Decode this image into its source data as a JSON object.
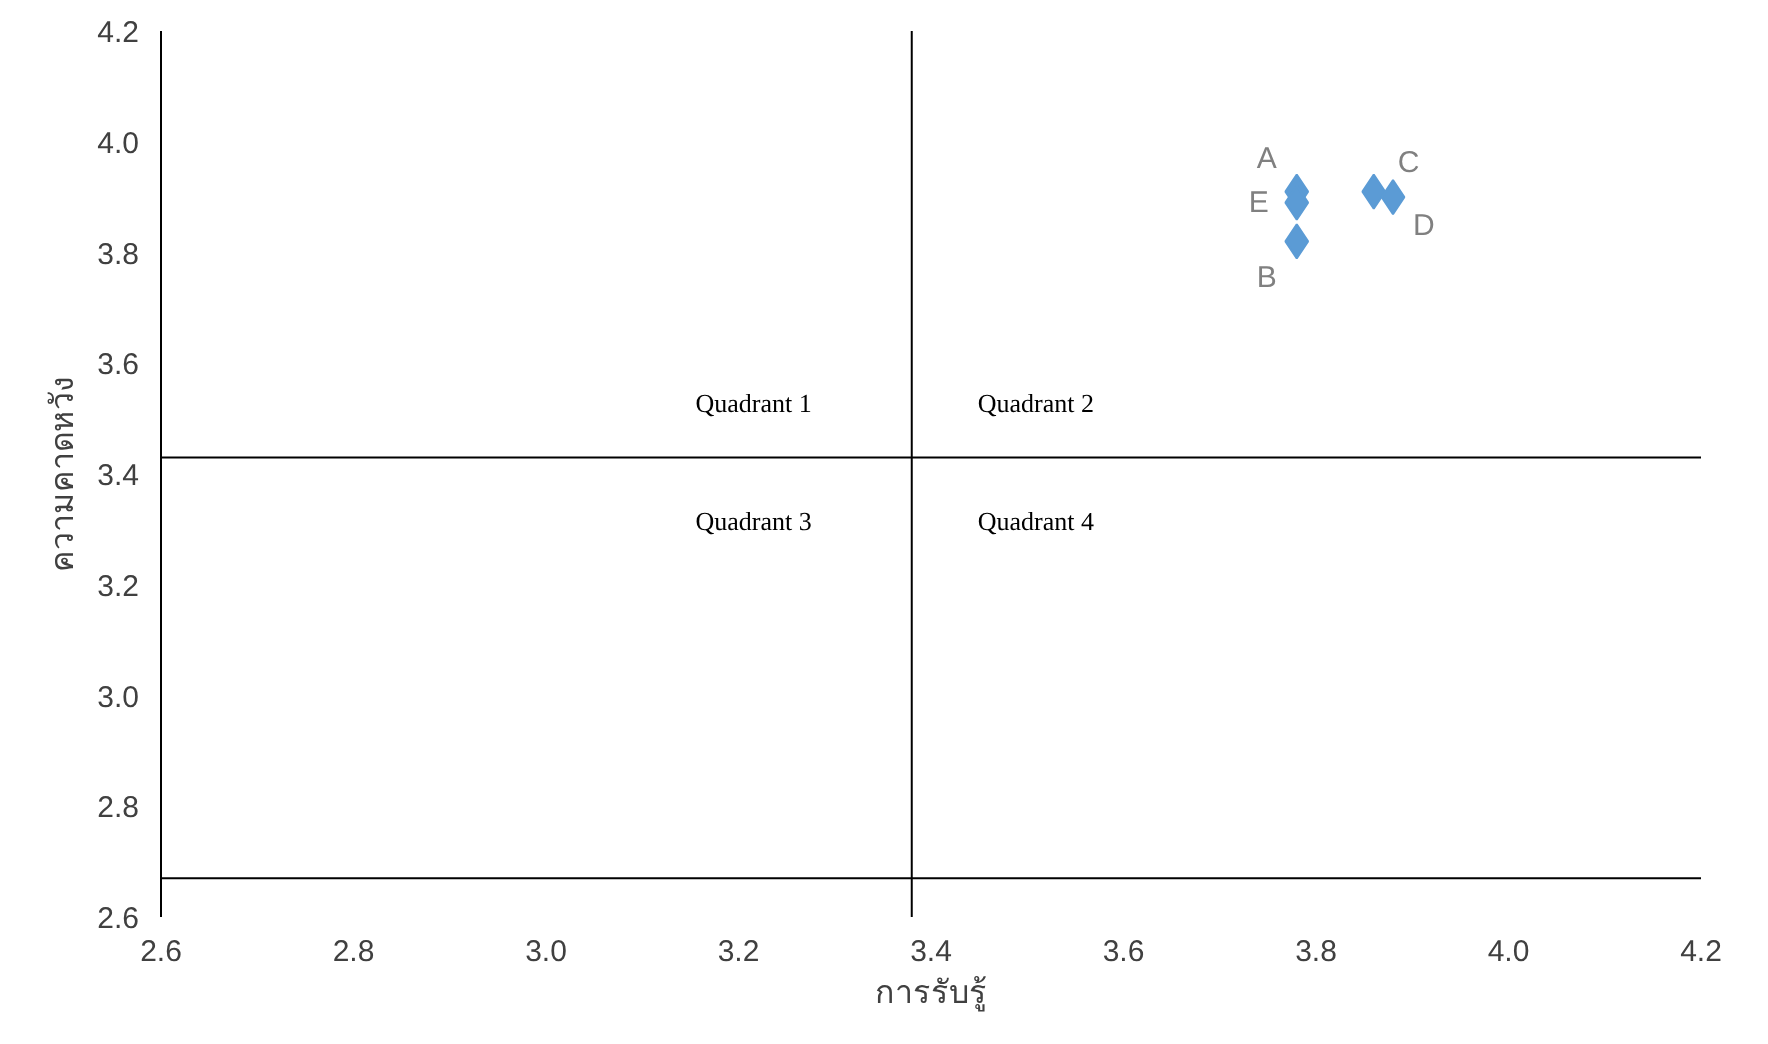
{
  "chart_data": {
    "type": "scatter",
    "xlabel": "การรับรู้",
    "ylabel": "ความคาดหวัง",
    "x": [
      3.78,
      3.78,
      3.86,
      3.88,
      3.78
    ],
    "series": [
      {
        "color": "#5b9bd5",
        "values": [
          3.91,
          3.82,
          3.91,
          3.9,
          3.89
        ]
      }
    ],
    "value_labels": [
      "A",
      "B",
      "C",
      "D",
      "E"
    ],
    "marker": "diamond",
    "grid": false,
    "xlim": [
      2.6,
      4.2
    ],
    "ylim": [
      2.6,
      4.2
    ],
    "xticks": [
      {
        "value": 2.6,
        "label": "2.6"
      },
      {
        "value": 2.8,
        "label": "2.8"
      },
      {
        "value": 3.0,
        "label": "3.0"
      },
      {
        "value": 3.2,
        "label": "3.2"
      },
      {
        "value": 3.4,
        "label": "3.4"
      },
      {
        "value": 3.6,
        "label": "3.6"
      },
      {
        "value": 3.8,
        "label": "3.8"
      },
      {
        "value": 4.0,
        "label": "4.0"
      },
      {
        "value": 4.2,
        "label": "4.2"
      }
    ],
    "yticks": [
      {
        "value": 2.6,
        "label": "2.6"
      },
      {
        "value": 2.8,
        "label": "2.8"
      },
      {
        "value": 3.0,
        "label": "3.0"
      },
      {
        "value": 3.2,
        "label": "3.2"
      },
      {
        "value": 3.4,
        "label": "3.4"
      },
      {
        "value": 3.6,
        "label": "3.6"
      },
      {
        "value": 3.8,
        "label": "3.8"
      },
      {
        "value": 4.0,
        "label": "4.0"
      },
      {
        "value": 4.2,
        "label": "4.2"
      }
    ],
    "ref_lines": [
      {
        "axis": "x",
        "value": 3.38,
        "color": "#000000"
      },
      {
        "axis": "y",
        "value": 3.43,
        "color": "#000000"
      },
      {
        "axis": "y",
        "value": 2.67,
        "color": "#000000"
      }
    ],
    "annotations": [
      "Quadrant 1",
      "Quadrant 2",
      "Quadrant 3",
      "Quadrant 4"
    ]
  }
}
